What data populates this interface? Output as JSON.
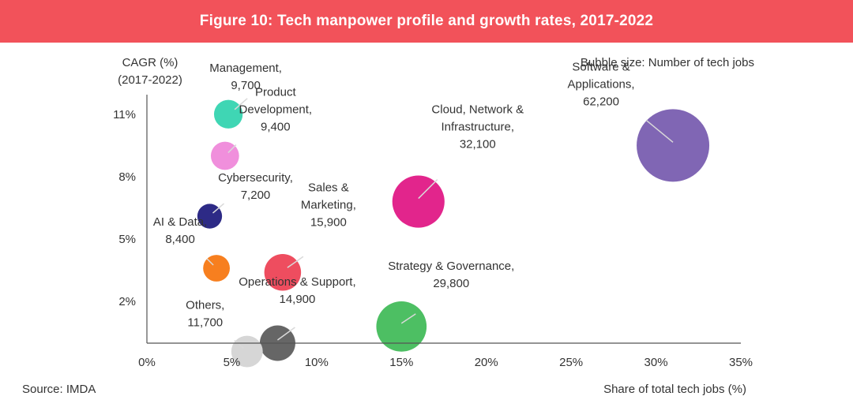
{
  "banner": {
    "title": "Figure 10: Tech manpower profile and growth rates, 2017-2022",
    "color": "#f2525a"
  },
  "note": "Bubble size: Number of tech jobs",
  "source": "Source: IMDA",
  "chart_data": {
    "type": "scatter",
    "title": "Figure 10: Tech manpower profile and growth rates, 2017-2022",
    "xlabel": "Share of total tech jobs (%)",
    "ylabel": [
      "CAGR (%)",
      "(2017-2022)"
    ],
    "x_unit": "%",
    "y_unit": "%",
    "xlim": [
      0,
      35
    ],
    "ylim": [
      0,
      13
    ],
    "x_ticks": [
      "0%",
      "5%",
      "10%",
      "15%",
      "20%",
      "25%",
      "30%",
      "35%"
    ],
    "y_ticks": [
      "2%",
      "5%",
      "8%",
      "11%"
    ],
    "size_label": "Number of tech jobs",
    "grid": false,
    "legend": "none",
    "points": [
      {
        "label": [
          "Management,",
          "9,700"
        ],
        "label_text": "Management, 9,700",
        "x": 4.8,
        "y": 11.0,
        "size": 9700,
        "color": "#3fd6b4"
      },
      {
        "label": [
          "Product",
          "Development,",
          "9,400"
        ],
        "label_text": "Product Development, 9,400",
        "x": 4.6,
        "y": 9.0,
        "size": 9400,
        "color": "#f08fdc"
      },
      {
        "label": [
          "Cybersecurity,",
          "7,200"
        ],
        "label_text": "Cybersecurity, 7,200",
        "x": 3.7,
        "y": 6.1,
        "size": 7200,
        "color": "#2d2a86"
      },
      {
        "label": [
          "AI & Data,",
          "8,400"
        ],
        "label_text": "AI & Data, 8,400",
        "x": 4.1,
        "y": 3.6,
        "size": 8400,
        "color": "#f77f1f"
      },
      {
        "label": [
          "Sales &",
          "Marketing,",
          "15,900"
        ],
        "label_text": "Sales & Marketing, 15,900",
        "x": 8.0,
        "y": 3.4,
        "size": 15900,
        "color": "#ee4d5f"
      },
      {
        "label": [
          "Cloud, Network &",
          "Infrastructure,",
          "32,100"
        ],
        "label_text": "Cloud, Network & Infrastructure, 32,100",
        "x": 16.0,
        "y": 6.8,
        "size": 32100,
        "color": "#e2258c"
      },
      {
        "label": [
          "Software &",
          "Applications,",
          "62,200"
        ],
        "label_text": "Software & Applications, 62,200",
        "x": 31.0,
        "y": 9.5,
        "size": 62200,
        "color": "#8066b4"
      },
      {
        "label": [
          "Strategy & Governance,",
          "29,800"
        ],
        "label_text": "Strategy & Governance, 29,800",
        "x": 15.0,
        "y": 0.8,
        "size": 29800,
        "color": "#4dbf63"
      },
      {
        "label": [
          "Operations & Support,",
          "14,900"
        ],
        "label_text": "Operations & Support, 14,900",
        "x": 7.7,
        "y": 0.0,
        "size": 14900,
        "color": "#666666"
      },
      {
        "label": [
          "Others,",
          "11,700"
        ],
        "label_text": "Others, 11,700",
        "x": 5.9,
        "y": -0.4,
        "size": 11700,
        "color": "#d6d6d6"
      }
    ]
  }
}
